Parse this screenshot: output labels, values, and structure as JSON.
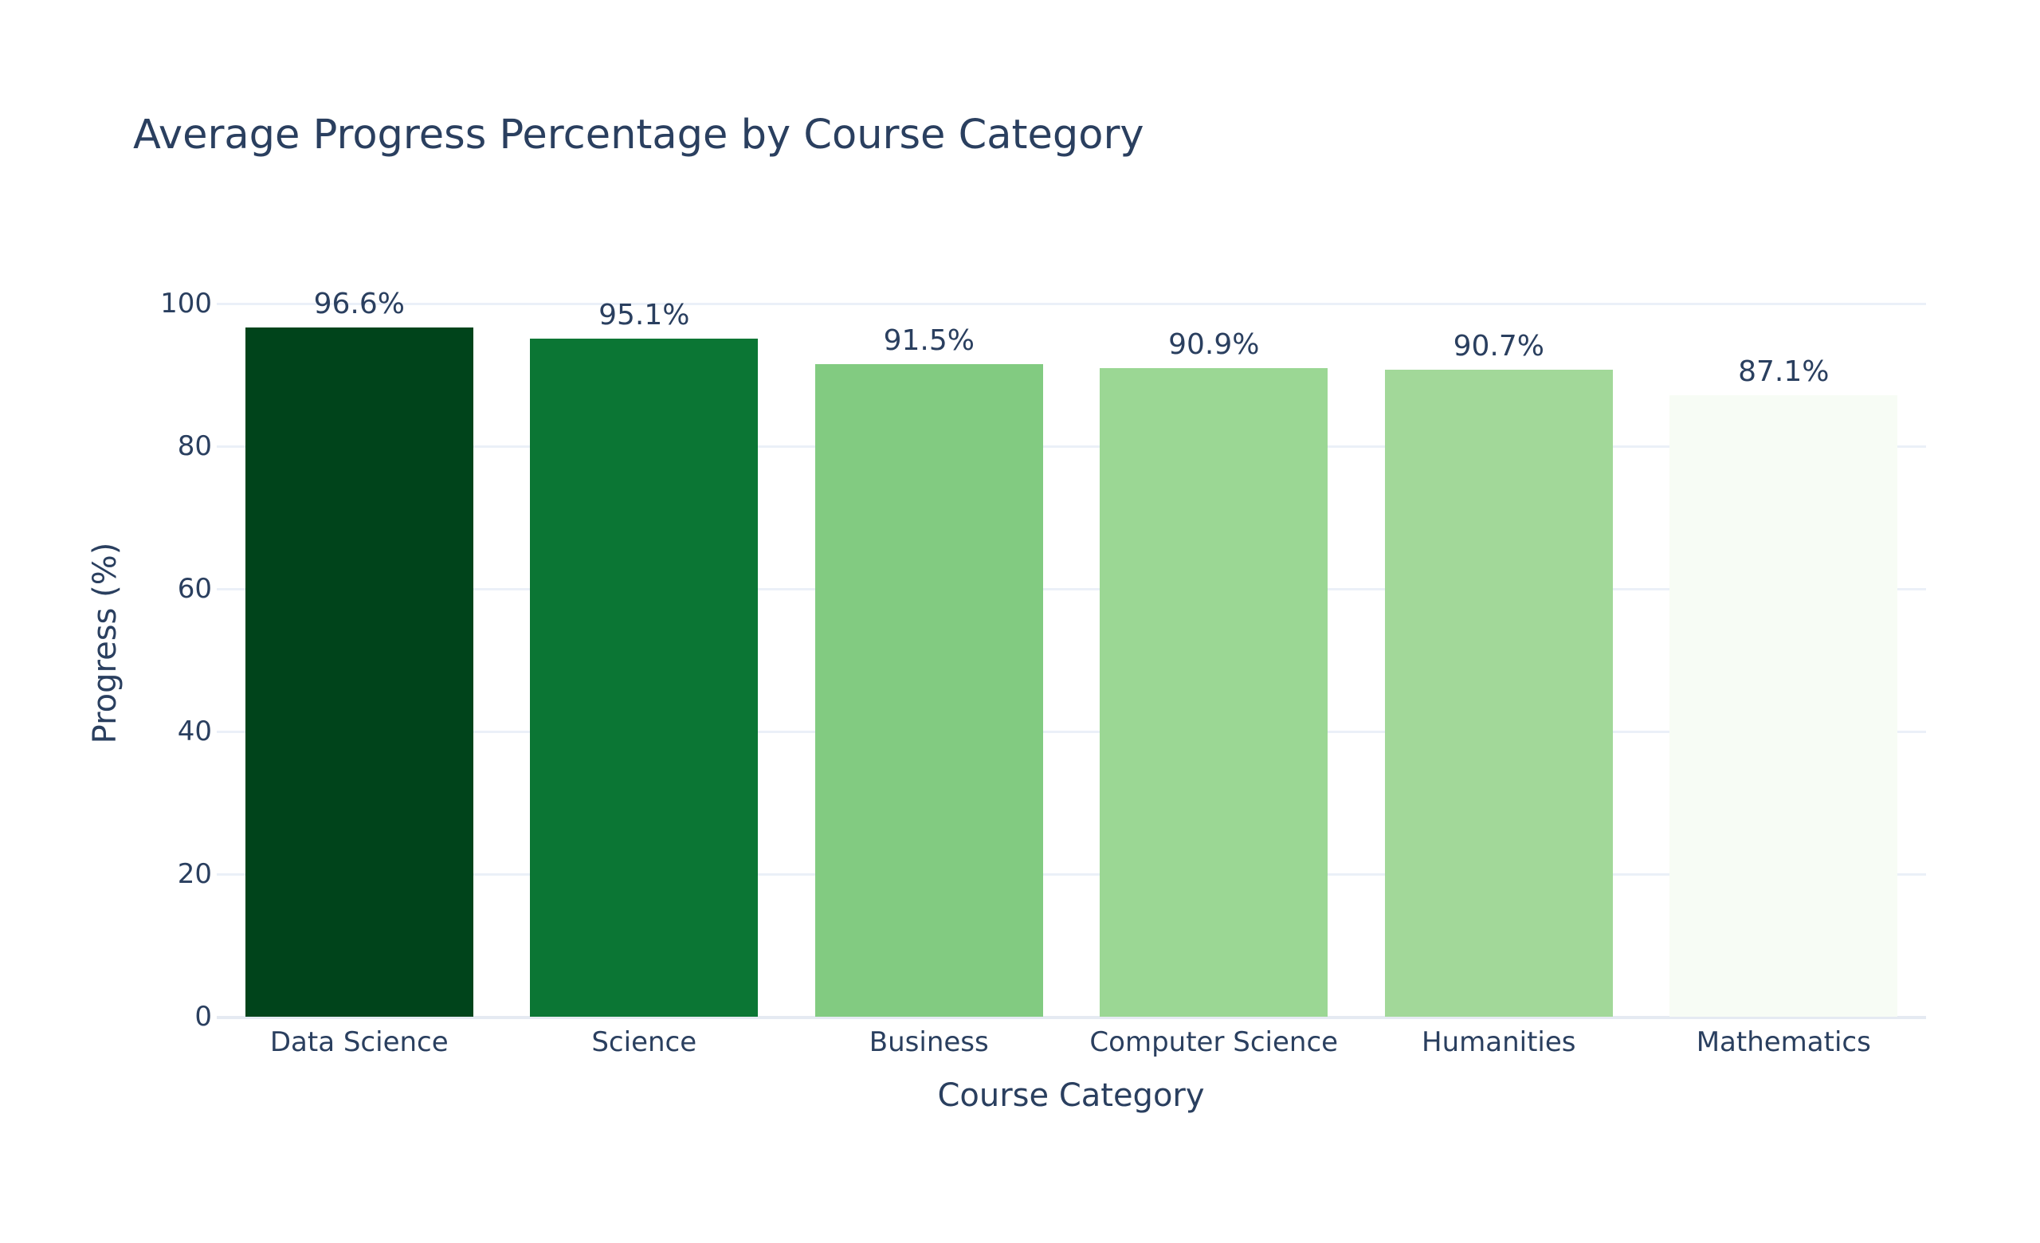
{
  "chart_data": {
    "type": "bar",
    "title": "Average Progress Percentage by Course Category",
    "xlabel": "Course Category",
    "ylabel": "Progress (%)",
    "categories": [
      "Data Science",
      "Science",
      "Business",
      "Computer Science",
      "Humanities",
      "Mathematics"
    ],
    "values": [
      96.6,
      95.1,
      91.5,
      90.9,
      90.7,
      87.1
    ],
    "data_labels": [
      "96.6%",
      "95.1%",
      "91.5%",
      "90.9%",
      "90.7%",
      "87.1%"
    ],
    "colors": [
      "#00441b",
      "#0b7634",
      "#82cb81",
      "#9bd794",
      "#a2d899",
      "#f7fcf5"
    ],
    "ylim": [
      0,
      100
    ],
    "yticks": [
      0,
      20,
      40,
      60,
      80,
      100
    ],
    "grid": true,
    "legend": false
  },
  "title": "Average Progress Percentage by Course Category",
  "axes": {
    "x_title": "Course Category",
    "y_title": "Progress (%)",
    "y_ticks": [
      "0",
      "20",
      "40",
      "60",
      "80",
      "100"
    ]
  }
}
